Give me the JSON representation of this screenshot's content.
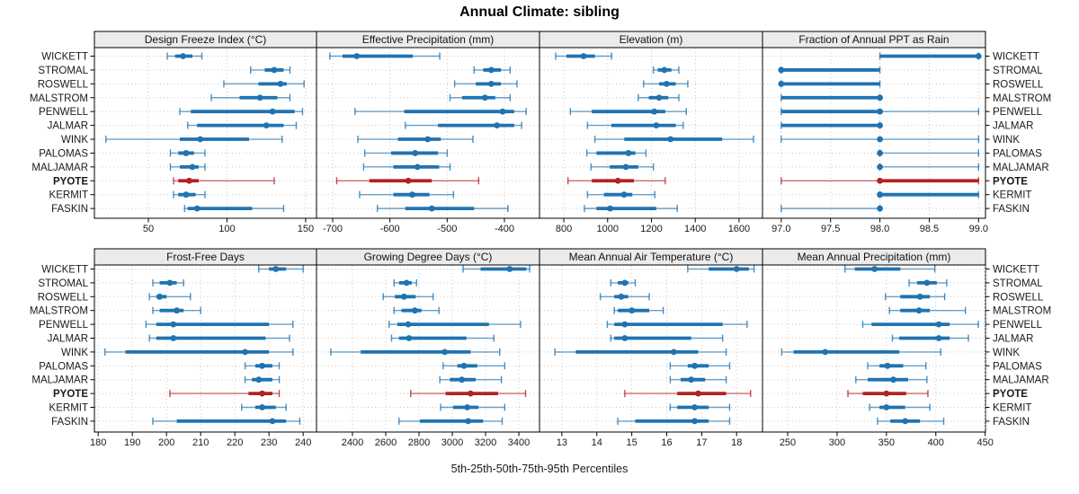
{
  "title": "Annual Climate: sibling",
  "caption": "5th-25th-50th-75th-95th Percentiles",
  "colors": {
    "series": "#2073b1",
    "highlight": "#b22222",
    "strip_bg": "#ebebeb",
    "grid": "#c8c8c8",
    "panel_border": "#000000",
    "text": "#1a1a1a"
  },
  "stations": [
    "WICKETT",
    "STROMAL",
    "ROSWELL",
    "MALSTROM",
    "PENWELL",
    "JALMAR",
    "WINK",
    "PALOMAS",
    "MALJAMAR",
    "PYOTE",
    "KERMIT",
    "FASKIN"
  ],
  "highlight_station": "PYOTE",
  "percentiles": [
    5,
    25,
    50,
    75,
    95
  ],
  "chart_data": {
    "type": "dot-interval trellis (5th-25th-50th-75th-95th percentile ranges per station)",
    "layout": {
      "rows": 2,
      "cols": 4,
      "grid": "dotted",
      "station_labels": "both sides"
    },
    "panels": [
      {
        "title": "Design Freeze Index (°C)",
        "ticks": [
          50,
          100,
          150
        ],
        "tick_labels": [
          "50",
          "100",
          "150"
        ],
        "xlim": [
          15.7,
          156.9
        ],
        "values": [
          [
            62,
            67,
            72,
            78,
            84
          ],
          [
            115,
            124,
            130,
            136,
            140
          ],
          [
            98,
            120,
            134,
            138,
            149
          ],
          [
            90,
            108,
            121,
            132,
            140
          ],
          [
            70,
            77,
            129,
            143,
            148
          ],
          [
            75,
            81,
            125,
            136,
            144
          ],
          [
            23,
            70,
            83,
            114,
            135
          ],
          [
            64,
            69,
            74,
            79,
            86
          ],
          [
            64,
            70,
            78,
            82,
            86
          ],
          [
            66,
            69,
            76,
            82,
            130
          ],
          [
            66,
            69,
            74,
            80,
            86
          ],
          [
            73,
            75,
            81,
            116,
            136
          ]
        ]
      },
      {
        "title": "Effective Precipitation (mm)",
        "ticks": [
          -700,
          -600,
          -500,
          -400
        ],
        "tick_labels": [
          "-700",
          "-600",
          "-500",
          "-400"
        ],
        "xlim": [
          -728.3,
          -338.7
        ],
        "values": [
          [
            -705,
            -683,
            -658,
            -560,
            -513
          ],
          [
            -453,
            -437,
            -423,
            -406,
            -390
          ],
          [
            -487,
            -450,
            -423,
            -406,
            -378
          ],
          [
            -495,
            -474,
            -434,
            -416,
            -390
          ],
          [
            -661,
            -575,
            -403,
            -383,
            -362
          ],
          [
            -573,
            -516,
            -413,
            -383,
            -370
          ],
          [
            -656,
            -586,
            -534,
            -511,
            -455
          ],
          [
            -644,
            -598,
            -556,
            -516,
            -500
          ],
          [
            -646,
            -594,
            -552,
            -514,
            -495
          ],
          [
            -693,
            -636,
            -568,
            -527,
            -445
          ],
          [
            -653,
            -594,
            -561,
            -531,
            -489
          ],
          [
            -622,
            -573,
            -527,
            -453,
            -394
          ]
        ]
      },
      {
        "title": "Elevation (m)",
        "ticks": [
          800,
          1000,
          1200,
          1400,
          1600
        ],
        "tick_labels": [
          "800",
          "1000",
          "1200",
          "1400",
          "1600"
        ],
        "xlim": [
          689,
          1707
        ],
        "values": [
          [
            763,
            812,
            890,
            942,
            1018
          ],
          [
            1209,
            1229,
            1259,
            1291,
            1325
          ],
          [
            1164,
            1235,
            1269,
            1311,
            1366
          ],
          [
            1140,
            1188,
            1235,
            1277,
            1325
          ],
          [
            830,
            928,
            1213,
            1263,
            1359
          ],
          [
            908,
            1017,
            1222,
            1311,
            1345
          ],
          [
            942,
            1076,
            1287,
            1523,
            1666
          ],
          [
            905,
            949,
            1095,
            1127,
            1175
          ],
          [
            924,
            1010,
            1083,
            1140,
            1209
          ],
          [
            819,
            928,
            1047,
            1120,
            1263
          ],
          [
            908,
            983,
            1075,
            1113,
            1215
          ],
          [
            894,
            949,
            1012,
            1222,
            1318
          ]
        ]
      },
      {
        "title": "Fraction of Annual PPT as Rain",
        "ticks": [
          97.0,
          97.5,
          98.0,
          98.5,
          99.0
        ],
        "tick_labels": [
          "97.0",
          "97.5",
          "98.0",
          "98.5",
          "99.0"
        ],
        "xlim": [
          96.81,
          99.07
        ],
        "values": [
          [
            98,
            98,
            99,
            99,
            99
          ],
          [
            97,
            97,
            97,
            98,
            98
          ],
          [
            97,
            97,
            97,
            98,
            98
          ],
          [
            97,
            97,
            98,
            98,
            98
          ],
          [
            97,
            97,
            98,
            98,
            99
          ],
          [
            97,
            97,
            98,
            98,
            98
          ],
          [
            97,
            98,
            98,
            98,
            99
          ],
          [
            98,
            98,
            98,
            98,
            99
          ],
          [
            98,
            98,
            98,
            98,
            99
          ],
          [
            97,
            98,
            98,
            99,
            99
          ],
          [
            98,
            98,
            98,
            99,
            99
          ],
          [
            97,
            98,
            98,
            98,
            98
          ]
        ]
      },
      {
        "title": "Frost-Free Days",
        "ticks": [
          180,
          190,
          200,
          210,
          220,
          230,
          240
        ],
        "tick_labels": [
          "180",
          "190",
          "200",
          "210",
          "220",
          "230",
          "240"
        ],
        "xlim": [
          178.9,
          243.9
        ],
        "values": [
          [
            227,
            230,
            232,
            235,
            240
          ],
          [
            196,
            198,
            201,
            203,
            205
          ],
          [
            195,
            197,
            198,
            200,
            207
          ],
          [
            196,
            198,
            203,
            205,
            210
          ],
          [
            194,
            197,
            202,
            230,
            237
          ],
          [
            195,
            197,
            202,
            229,
            236
          ],
          [
            182,
            188,
            223,
            230,
            237
          ],
          [
            223,
            226,
            228,
            231,
            233
          ],
          [
            223,
            225,
            227,
            231,
            233
          ],
          [
            201,
            224,
            228,
            231,
            233
          ],
          [
            222,
            226,
            228,
            232,
            235
          ],
          [
            196,
            203,
            231,
            235,
            239
          ]
        ]
      },
      {
        "title": "Growing Degree Days (°C)",
        "ticks": [
          2400,
          2600,
          2800,
          3000,
          3200,
          3400
        ],
        "tick_labels": [
          "2400",
          "2600",
          "2800",
          "3000",
          "3200",
          "3400"
        ],
        "xlim": [
          2184,
          3524
        ],
        "values": [
          [
            3065,
            3170,
            3345,
            3445,
            3465
          ],
          [
            2650,
            2680,
            2725,
            2757,
            2785
          ],
          [
            2585,
            2655,
            2710,
            2780,
            2885
          ],
          [
            2650,
            2695,
            2775,
            2815,
            2920
          ],
          [
            2620,
            2670,
            2735,
            3220,
            3410
          ],
          [
            2635,
            2680,
            2740,
            3085,
            3250
          ],
          [
            2270,
            2450,
            2955,
            3110,
            3285
          ],
          [
            2945,
            3030,
            3070,
            3150,
            3315
          ],
          [
            2925,
            2985,
            3057,
            3140,
            3295
          ],
          [
            2750,
            2960,
            3110,
            3275,
            3440
          ],
          [
            2930,
            3005,
            3090,
            3157,
            3315
          ],
          [
            2680,
            2805,
            3095,
            3185,
            3300
          ]
        ]
      },
      {
        "title": "Mean Annual Air Temperature (°C)",
        "ticks": [
          13,
          14,
          15,
          16,
          17,
          18
        ],
        "tick_labels": [
          "13",
          "14",
          "15",
          "16",
          "17",
          "18"
        ],
        "xlim": [
          12.36,
          18.74
        ],
        "values": [
          [
            16.6,
            17.2,
            18.0,
            18.35,
            18.5
          ],
          [
            14.4,
            14.6,
            14.8,
            14.9,
            15.1
          ],
          [
            14.1,
            14.5,
            14.7,
            14.9,
            15.5
          ],
          [
            14.5,
            14.6,
            15.0,
            15.5,
            15.9
          ],
          [
            14.3,
            14.5,
            14.8,
            17.6,
            18.3
          ],
          [
            14.4,
            14.5,
            14.8,
            16.7,
            17.6
          ],
          [
            12.8,
            13.4,
            16.2,
            16.9,
            17.7
          ],
          [
            16.1,
            16.6,
            16.8,
            17.2,
            17.8
          ],
          [
            16.1,
            16.4,
            16.7,
            17.1,
            17.7
          ],
          [
            14.8,
            16.3,
            16.9,
            17.7,
            18.4
          ],
          [
            16.1,
            16.3,
            16.8,
            17.2,
            17.8
          ],
          [
            14.6,
            15.1,
            16.8,
            17.2,
            17.8
          ]
        ]
      },
      {
        "title": "Mean Annual Precipitation (mm)",
        "ticks": [
          250,
          300,
          350,
          400,
          450
        ],
        "tick_labels": [
          "250",
          "300",
          "350",
          "400",
          "450"
        ],
        "xlim": [
          224.5,
          450.3
        ],
        "values": [
          [
            308,
            318,
            338,
            364,
            399
          ],
          [
            373,
            381,
            391,
            401,
            411
          ],
          [
            349,
            364,
            384,
            394,
            409
          ],
          [
            353,
            364,
            383,
            394,
            430
          ],
          [
            326,
            335,
            403,
            414,
            443
          ],
          [
            356,
            363,
            403,
            414,
            433
          ],
          [
            244,
            256,
            288,
            363,
            405
          ],
          [
            331,
            343,
            351,
            367,
            390
          ],
          [
            319,
            331,
            357,
            372,
            391
          ],
          [
            311,
            326,
            350,
            370,
            392
          ],
          [
            333,
            343,
            350,
            369,
            394
          ],
          [
            341,
            354,
            369,
            384,
            408
          ]
        ]
      }
    ]
  }
}
